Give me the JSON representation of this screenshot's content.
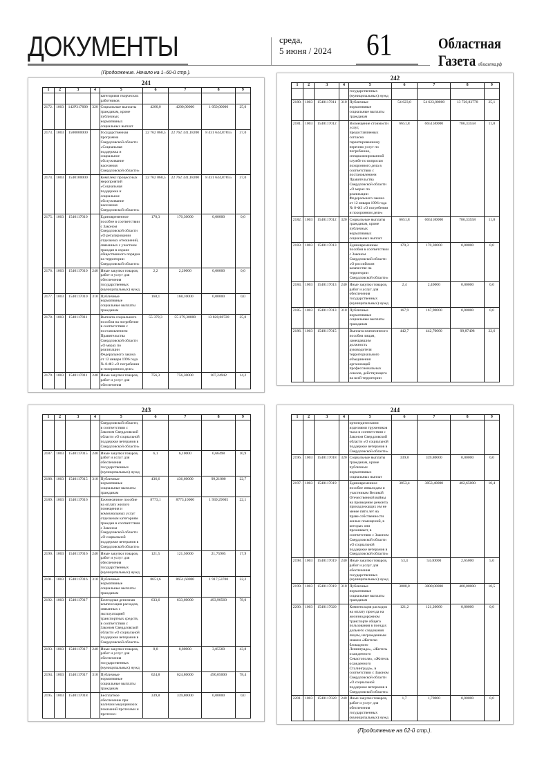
{
  "header": {
    "section_title": "ДОКУМЕНТЫ",
    "weekday": "среда,",
    "date": "5 июня / 2024",
    "page_number": "61",
    "brand_line1": "Областная",
    "brand_line2": "Газета",
    "brand_site": "облгазета.рф"
  },
  "continued_from": "(Продолжение. Начало на 1–60-й стр.).",
  "continued_on": "(Продолжение на 62-й стр.).",
  "column_headers": [
    "1",
    "2",
    "3",
    "4",
    "5",
    "6",
    "7",
    "8",
    "9"
  ],
  "panels": [
    {
      "number": "241",
      "rows": [
        [
          "",
          "",
          "",
          "",
          "категориям творческих\nработников",
          "",
          "",
          "",
          ""
        ],
        [
          "2172.",
          "1003",
          "142P317000",
          "320",
          "Социальные выплаты\nгражданам, кроме\nпубличных\nнормативных\nсоциальных выплат",
          "4200,0",
          "4200,00000",
          "1 050,00000",
          "25,0"
        ],
        [
          "2173.",
          "1003",
          "1500000000",
          "",
          "Государственная\nпрограмма\nСвердловской области\n«Социальная\nподдержка и\nсоциальное\nобслуживание\nнаселения\nСвердловской области»",
          "22 762 060,5",
          "22 762 331,18200",
          "8 431 644,87855",
          "37,0"
        ],
        [
          "2174.",
          "1003",
          "1540100000",
          "",
          "Комплекс процессных\nмероприятий\n«Социальная\nподдержка и\nсоциальное\nобслуживание\nнаселения\nСвердловской области»",
          "22 762 060,5",
          "22 762 331,18200",
          "8 431 644,87855",
          "37,0"
        ],
        [
          "2175.",
          "1003",
          "1540117010",
          "",
          "Единовременное\nпособие в соответствии\nс Законом\nСвердловской области\n«О регулировании\nотдельных отношений,\nсвязанных с участием\nграждан в охране\nобщественного порядка\nна территории\nСвердловской области»",
          "170,3",
          "170,30000",
          "0,00000",
          "0,0"
        ],
        [
          "2176.",
          "1003",
          "1540117010",
          "240",
          "Иные закупки товаров,\nработ и услуг для\nобеспечения\nгосударственных\n(муниципальных) нужд",
          "2,2",
          "2,20000",
          "0,00000",
          "0,0"
        ],
        [
          "2177.",
          "1003",
          "1540117010",
          "310",
          "Публичные\nнормативные\nсоциальные выплаты\nгражданам",
          "168,1",
          "168,10000",
          "0,00000",
          "0,0"
        ],
        [
          "2178.",
          "1003",
          "1540117011",
          "",
          "Выплата социального\nпособия на погребение\nв соответствии с\nпостановлением\nПравительства\nСвердловской области\n«О мерах по\nреализации\nФедерального закона\nот 12 января 1996 года\n№ 8-ФЗ «О погребении\nи похоронном деле»",
          "55 379,3",
          "55 379,30000",
          "13 828,08720",
          "25,0"
        ],
        [
          "2179.",
          "1003",
          "1540117011",
          "240",
          "Иные закупки товаров,\nработ и услуг для\nобеспечения",
          "756,3",
          "756,30000",
          "107,24942",
          "14,2"
        ]
      ]
    },
    {
      "number": "242",
      "rows": [
        [
          "",
          "",
          "",
          "",
          "государственных\n(муниципальных) нужд",
          "",
          "",
          "",
          ""
        ],
        [
          "2180.",
          "1003",
          "1540117011",
          "310",
          "Публичные\nнормативные\nсоциальные выплаты\nгражданам",
          "54 623,0",
          "54 623,00000",
          "13 720,83778",
          "25,1"
        ],
        [
          "2181.",
          "1003",
          "1540117012",
          "",
          "Возмещение стоимости\nуслуг,\nпредоставляемых\nсогласно\nгарантированному\nперечню услуг по\nпогребению,\nспециализированной\nслужбе по вопросам\nпохоронного дела в\nсоответствии с\nпостановлением\nПравительства\nСвердловской области\n«О мерах по\nреализации\nФедерального закона\nот 12 января 1996 года\n№ 8-ФЗ «О погребении\nи похоронном деле»",
          "6651,8",
          "6651,80000",
          "786,33558",
          "11,8"
        ],
        [
          "2182.",
          "1003",
          "1540117012",
          "320",
          "Социальные выплаты\nгражданам, кроме\nпубличных\nнормативных\nсоциальных выплат",
          "6651,8",
          "6651,80000",
          "786,33558",
          "11,8"
        ],
        [
          "2183.",
          "1003",
          "1540117013",
          "",
          "Единовременные\nпособия в соответствии\nс Законом\nСвердловской области\n«О российском\nказачестве на\nтерритории\nСвердловской области»",
          "170,3",
          "170,30000",
          "0,00000",
          "0,0"
        ],
        [
          "2184.",
          "1003",
          "1540117013",
          "240",
          "Иные закупки товаров,\nработ и услуг для\nобеспечения\nгосударственных\n(муниципальных) нужд",
          "2,4",
          "2,40000",
          "0,00000",
          "0,0"
        ],
        [
          "2185.",
          "1003",
          "1540117013",
          "310",
          "Публичные\nнормативные\nсоциальные выплаты\nгражданам",
          "167,9",
          "167,90000",
          "0,00000",
          "0,0"
        ],
        [
          "2186.",
          "1003",
          "1540117015",
          "",
          "Выплата ежемесячного\nпособия лицам,\nзамещавшим\nдолжность\nруководителя\nтерриториального\nобъединения\nорганизаций\nпрофессиональных\nсоюзов, действующего\nна всей территории",
          "442,7",
          "442,70000",
          "99,87498",
          "22,6"
        ]
      ]
    },
    {
      "number": "243",
      "rows": [
        [
          "",
          "",
          "",
          "",
          "Свердловской области,\nв соответствии с\nЗаконом Свердловской\nобласти «О социальной\nподдержке ветеранов в\nСвердловской области»",
          "",
          "",
          "",
          ""
        ],
        [
          "2187.",
          "1003",
          "1540117015",
          "240",
          "Иные закупки товаров,\nработ и услуг для\nобеспечения\nгосударственных\n(муниципальных) нужд",
          "6,1",
          "6,10000",
          "0,66498",
          "10,9"
        ],
        [
          "2188.",
          "1003",
          "1540117015",
          "310",
          "Публичные\nнормативные\nсоциальные выплаты\nгражданам",
          "436,6",
          "436,60000",
          "99,21000",
          "22,7"
        ],
        [
          "2189.",
          "1003",
          "1540117016",
          "",
          "Ежемесячное пособие\nна оплату жилого\nпомещения и\nкоммунальных услуг\nотдельным категориям\nграждан в соответствии\nс Законом\nСвердловской области\n«О социальной\nподдержке ветеранов в\nСвердловской области»",
          "8773,1",
          "8773,10000",
          "1 939,29605",
          "22,1"
        ],
        [
          "2190.",
          "1003",
          "1540117016",
          "240",
          "Иные закупки товаров,\nработ и услуг для\nобеспечения\nгосударственных\n(муниципальных) нужд",
          "121,5",
          "121,50000",
          "21,75905",
          "17,9"
        ],
        [
          "2191.",
          "1003",
          "1540117016",
          "310",
          "Публичные\nнормативные\nсоциальные выплаты\nгражданам",
          "8651,6",
          "8651,60000",
          "1 917,53700",
          "22,2"
        ],
        [
          "2192.",
          "1003",
          "1540117017",
          "",
          "Ежегодная денежная\nкомпенсация расходов,\nсвязанных с\nэксплуатацией\nтранспортных средств,\nв соответствии с\nЗаконом Свердловской\nобласти «О социальной\nподдержке ветеранов в\nСвердловской области»",
          "633,6",
          "633,60000",
          "493,90560",
          "78,0"
        ],
        [
          "2193.",
          "1003",
          "1540117017",
          "240",
          "Иные закупки товаров,\nработ и услуг для\nобеспечения\nгосударственных\n(муниципальных) нужд",
          "8,8",
          "8,80000",
          "3,85560",
          "43,8"
        ],
        [
          "2194.",
          "1003",
          "1540117017",
          "310",
          "Публичные\nнормативные\nсоциальные выплаты\nгражданам",
          "624,8",
          "624,80000",
          "490,05000",
          "78,4"
        ],
        [
          "2195.",
          "1003",
          "1540117018",
          "",
          "Бесплатное\nобеспечение при\nналичии медицинских\nпоказаний протезами и\nпротезно-",
          "339,8",
          "339,80000",
          "0,00000",
          "0,0"
        ]
      ]
    },
    {
      "number": "244",
      "rows": [
        [
          "",
          "",
          "",
          "",
          "ортопедическими\nизделиями тружеников\nтыла в соответствии с\nЗаконом Свердловской\nобласти «О социальной\nподдержке ветеранов в\nСвердловской области»",
          "",
          "",
          "",
          ""
        ],
        [
          "2196.",
          "1003",
          "1540117018",
          "320",
          "Социальные выплаты\nгражданам, кроме\nпубличных\nнормативных\nсоциальных выплат",
          "339,8",
          "339,80000",
          "0,00000",
          "0,0"
        ],
        [
          "2197.",
          "1003",
          "1540117019",
          "",
          "Единовременное\nпособие инвалидам и\nучастникам Великой\nОтечественной войны\nна проведение ремонта\nпринадлежащих им не\nменее пяти лет на\nправе собственности\nжилых помещений, в\nкоторых они\nпроживают, в\nсоответствии с Законом\nСвердловской области\n«О социальной\nподдержке ветеранов в\nСвердловской области»",
          "3853,4",
          "3853,40000",
          "402,65000",
          "10,4"
        ],
        [
          "2198.",
          "1003",
          "1540117019",
          "240",
          "Иные закупки товаров,\nработ и услуг для\nобеспечения\nгосударственных\n(муниципальных) нужд",
          "53,4",
          "53,40000",
          "2,65000",
          "5,0"
        ],
        [
          "2199.",
          "1003",
          "1540117019",
          "310",
          "Публичные\nнормативные\nсоциальные выплаты\nгражданам",
          "3800,0",
          "3800,00000",
          "400,00000",
          "10,5"
        ],
        [
          "2200.",
          "1003",
          "1540117020",
          "",
          "Компенсация расходов\nна оплату проезда на\nжелезнодорожном\nтранспорте общего\nпользования в поездах\nдальнего следования\nлицам, награжденным\nзнаком «Жителю\nблокадного\nЛенинграда», «Житель\nосажденного\nСевастополя», «Житель\nосажденного\nСталинграда», в\nсоответствии с Законом\nСвердловской области\n«О социальной\nподдержке ветеранов в\nСвердловской области»",
          "121,2",
          "121,20000",
          "0,00000",
          "0,0"
        ],
        [
          "2201.",
          "1003",
          "1540117020",
          "240",
          "Иные закупки товаров,\nработ и услуг для\nобеспечения\nгосударственных\n(муниципальных) нужд",
          "1,7",
          "1,70000",
          "0,00000",
          "0,0"
        ]
      ]
    }
  ]
}
